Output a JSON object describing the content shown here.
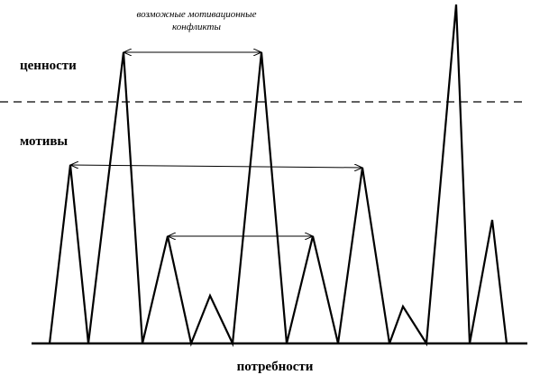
{
  "annotation": {
    "lines": [
      "возможные мотивационные",
      "конфликты"
    ]
  },
  "levels": {
    "values": "ценности",
    "motives": "мотивы",
    "needs": "потребности"
  }
}
